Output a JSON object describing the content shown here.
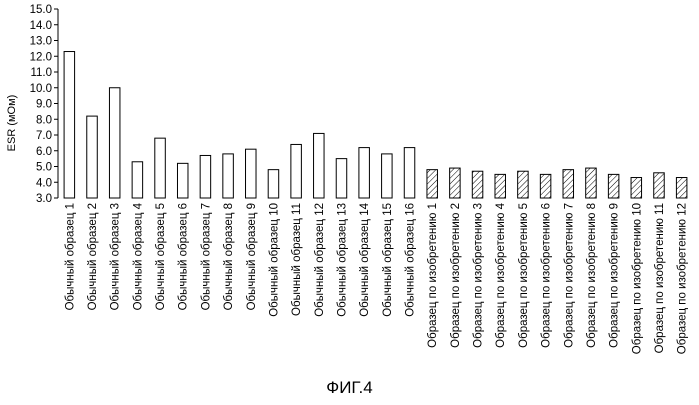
{
  "chart_data": {
    "type": "bar",
    "title": "",
    "xlabel": "",
    "ylabel": "ESR (мОм)",
    "ylim": [
      3.0,
      15.0
    ],
    "yticks": [
      "3.0",
      "4.0",
      "5.0",
      "6.0",
      "7.0",
      "8.0",
      "9.0",
      "10.0",
      "11.0",
      "12.0",
      "13.0",
      "14.0",
      "15.0"
    ],
    "categories": [
      "Обычный образец 1",
      "Обычный образец 2",
      "Обычный образец 3",
      "Обычный образец 4",
      "Обычный образец 5",
      "Обычный образец 6",
      "Обычный образец 7",
      "Обычный образец 8",
      "Обычный образец 9",
      "Обычный образец 10",
      "Обычный образец 11",
      "Обычный образец 12",
      "Обычный образец 13",
      "Обычный образец 14",
      "Обычный образец 15",
      "Обычный образец 16",
      "Образец по изобретению 1",
      "Образец по изобретению 2",
      "Образец по изобретению 3",
      "Образец по изобретению 4",
      "Образец по изобретению 5",
      "Образец по изобретению 6",
      "Образец по изобретению 7",
      "Образец по изобретению 8",
      "Образец по изобретению 9",
      "Образец по изобретению 10",
      "Образец по изобретению 11",
      "Образец по изобретению 12"
    ],
    "values": [
      12.3,
      8.2,
      10.0,
      5.3,
      6.8,
      5.2,
      5.7,
      5.8,
      6.1,
      4.8,
      6.4,
      7.1,
      5.5,
      6.2,
      5.8,
      6.2,
      4.8,
      4.9,
      4.7,
      4.5,
      4.7,
      4.5,
      4.8,
      4.9,
      4.5,
      4.3,
      4.6,
      4.3
    ],
    "fill": [
      "plain",
      "plain",
      "plain",
      "plain",
      "plain",
      "plain",
      "plain",
      "plain",
      "plain",
      "plain",
      "plain",
      "plain",
      "plain",
      "plain",
      "plain",
      "plain",
      "hatched",
      "hatched",
      "hatched",
      "hatched",
      "hatched",
      "hatched",
      "hatched",
      "hatched",
      "hatched",
      "hatched",
      "hatched",
      "hatched"
    ],
    "grid": false,
    "legend": "none"
  },
  "caption": "ФИГ.4",
  "colors": {
    "ink": "#000000",
    "background": "#ffffff"
  }
}
